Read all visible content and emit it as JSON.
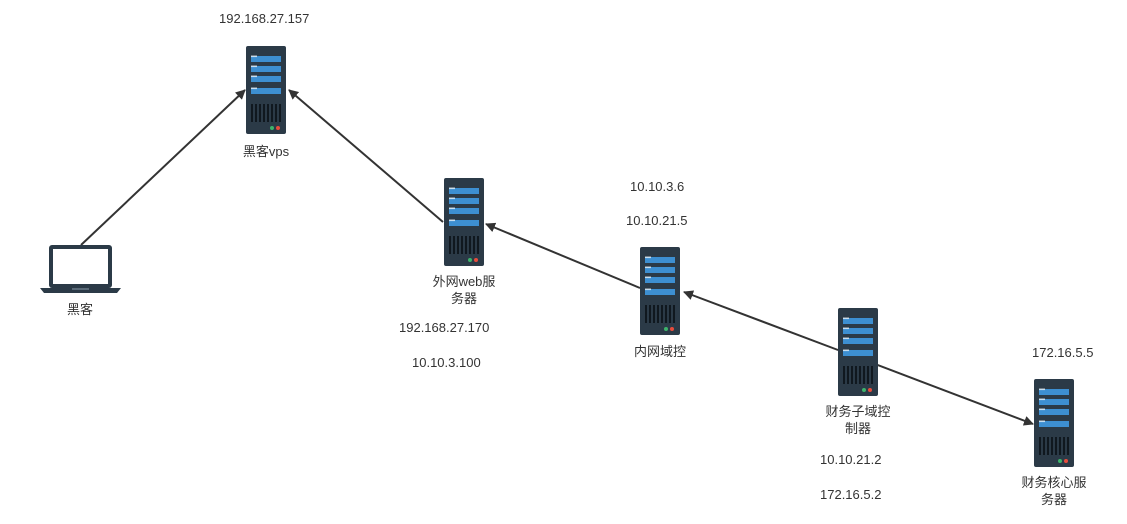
{
  "nodes": {
    "hacker": {
      "label": "黑客",
      "icon": "laptop-icon"
    },
    "vps": {
      "label": "黑客vps",
      "icon": "server-icon",
      "ips": [
        "192.168.27.157"
      ]
    },
    "web": {
      "label": "外网web服\n务器",
      "icon": "server-icon",
      "ips": [
        "192.168.27.170",
        "10.10.3.100"
      ]
    },
    "dc": {
      "label": "内网域控",
      "icon": "server-icon",
      "ips": [
        "10.10.3.6",
        "10.10.21.5"
      ]
    },
    "finance_dc": {
      "label": "财务子域控\n制器",
      "icon": "server-icon",
      "ips": [
        "10.10.21.2",
        "172.16.5.2"
      ]
    },
    "finance_core": {
      "label": "财务核心服\n务器",
      "icon": "server-icon",
      "ips": [
        "172.16.5.5"
      ]
    }
  },
  "edges": [
    {
      "from": "hacker",
      "to": "vps"
    },
    {
      "from": "web",
      "to": "vps"
    },
    {
      "from": "dc",
      "to": "web"
    },
    {
      "from": "finance_dc",
      "to": "dc"
    },
    {
      "from": "finance_dc",
      "to": "finance_core"
    }
  ],
  "colors": {
    "server_body": "#2b3a47",
    "server_panel": "#3d8fd1",
    "server_led": "#e74c3c",
    "arrow": "#333333",
    "laptop": "#2b3a47"
  }
}
